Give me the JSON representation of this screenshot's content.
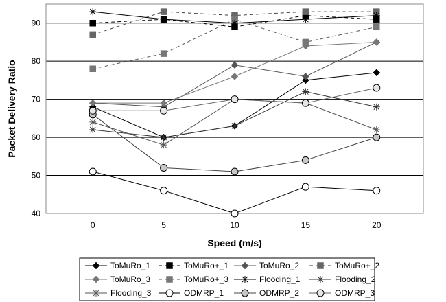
{
  "chart_data": {
    "type": "line",
    "title": "",
    "xlabel": "Speed (m/s)",
    "ylabel": "Packet Delivery Ratio",
    "x": [
      0,
      5,
      10,
      15,
      20
    ],
    "xticks": [
      "0",
      "5",
      "10",
      "15",
      "20"
    ],
    "yticks": [
      "40",
      "50",
      "60",
      "70",
      "80",
      "90"
    ],
    "xlim": [
      -3.3,
      23.3
    ],
    "ylim": [
      40,
      95
    ],
    "grid": "horizontal",
    "legend_position": "bottom",
    "series": [
      {
        "name": "ToMuRo_1",
        "values": [
          68,
          60,
          63,
          75,
          77
        ],
        "marker": "diamond",
        "fill": "#000000",
        "line": "#000000",
        "dash": "solid"
      },
      {
        "name": "ToMuRo+_1",
        "values": [
          90,
          91,
          89,
          92,
          91
        ],
        "marker": "square",
        "fill": "#000000",
        "line": "#000000",
        "dash": "dashed"
      },
      {
        "name": "ToMuRo_2",
        "values": [
          69,
          68,
          79,
          76,
          85
        ],
        "marker": "diamond",
        "fill": "#555555",
        "line": "#555555",
        "dash": "solid"
      },
      {
        "name": "ToMuRo+_2",
        "values": [
          87,
          93,
          92,
          93,
          93
        ],
        "marker": "square",
        "fill": "#666666",
        "line": "#444444",
        "dash": "dashed"
      },
      {
        "name": "ToMuRo_3",
        "values": [
          69,
          69,
          76,
          84,
          85
        ],
        "marker": "diamond",
        "fill": "#777777",
        "line": "#777777",
        "dash": "solid"
      },
      {
        "name": "ToMuRo+_3",
        "values": [
          78,
          82,
          91,
          85,
          89
        ],
        "marker": "square",
        "fill": "#777777",
        "line": "#555555",
        "dash": "dashed"
      },
      {
        "name": "Flooding_1",
        "values": [
          93,
          91,
          90,
          91,
          92
        ],
        "marker": "star",
        "fill": "none",
        "line": "#000000",
        "dash": "solid"
      },
      {
        "name": "Flooding_2",
        "values": [
          62,
          60,
          63,
          72,
          68
        ],
        "marker": "star",
        "fill": "none",
        "line": "#333333",
        "dash": "solid"
      },
      {
        "name": "Flooding_3",
        "values": [
          64,
          58,
          70,
          69,
          62
        ],
        "marker": "star",
        "fill": "none",
        "line": "#555555",
        "dash": "solid"
      },
      {
        "name": "ODMRP_1",
        "values": [
          51,
          46,
          40,
          47,
          46
        ],
        "marker": "circle",
        "fill": "#ffffff",
        "line": "#000000",
        "dash": "solid"
      },
      {
        "name": "ODMRP_2",
        "values": [
          66,
          52,
          51,
          54,
          60
        ],
        "marker": "circle",
        "fill": "#c8c8c8",
        "line": "#444444",
        "dash": "solid"
      },
      {
        "name": "ODMRP_3",
        "values": [
          67,
          67,
          70,
          69,
          73
        ],
        "marker": "circle",
        "fill": "#e6e6e6",
        "line": "#666666",
        "dash": "solid"
      }
    ]
  }
}
